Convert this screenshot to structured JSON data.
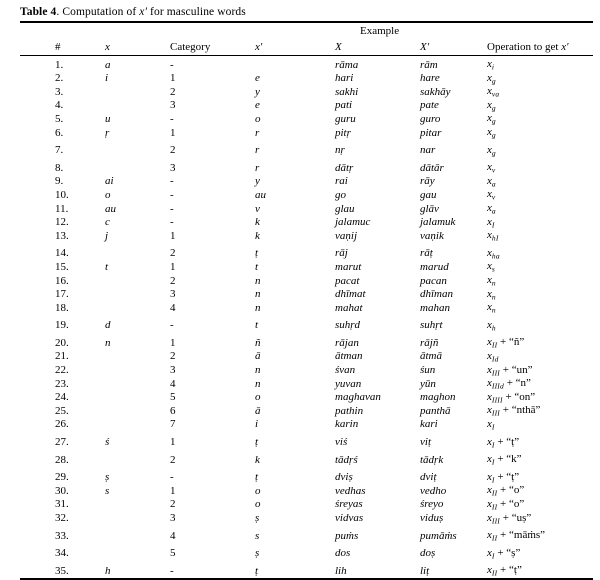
{
  "title": {
    "bold": "Table 4",
    "rest": ". Computation of ",
    "var": "x′",
    "rest2": " for masculine words"
  },
  "header": {
    "example": "Example",
    "columns": [
      "#",
      "x",
      "Category",
      "x′",
      "X",
      "X′"
    ],
    "op_pre": "Operation to get ",
    "op_var": "x′"
  },
  "op_base": "x",
  "rows": [
    {
      "n": "1.",
      "x": "a",
      "cat": "-",
      "xp": "",
      "X": "rāma",
      "Xp": "rām",
      "op": {
        "sub": "i",
        "suffix": ""
      },
      "tall": false
    },
    {
      "n": "2.",
      "x": "i",
      "cat": "1",
      "xp": "e",
      "X": "hari",
      "Xp": "hare",
      "op": {
        "sub": "g",
        "suffix": ""
      },
      "tall": false
    },
    {
      "n": "3.",
      "x": "",
      "cat": "2",
      "xp": "y",
      "X": "sakhi",
      "Xp": "sakhāy",
      "op": {
        "sub": "va",
        "suffix": ""
      },
      "tall": false
    },
    {
      "n": "4.",
      "x": "",
      "cat": "3",
      "xp": "e",
      "X": "pati",
      "Xp": "pate",
      "op": {
        "sub": "g",
        "suffix": ""
      },
      "tall": false
    },
    {
      "n": "5.",
      "x": "u",
      "cat": "-",
      "xp": "o",
      "X": "guru",
      "Xp": "guro",
      "op": {
        "sub": "g",
        "suffix": ""
      },
      "tall": false
    },
    {
      "n": "6.",
      "x": "ṛ",
      "cat": "1",
      "xp": "r",
      "X": "pitṛ",
      "Xp": "pitar",
      "op": {
        "sub": "g",
        "suffix": ""
      },
      "tall": false
    },
    {
      "n": "7.",
      "x": "",
      "cat": "2",
      "xp": "r",
      "X": "nṛ",
      "Xp": "nar",
      "op": {
        "sub": "g",
        "suffix": ""
      },
      "tall": true
    },
    {
      "n": "8.",
      "x": "",
      "cat": "3",
      "xp": "r",
      "X": "dātṛ",
      "Xp": "dātār",
      "op": {
        "sub": "v",
        "suffix": ""
      },
      "tall": true
    },
    {
      "n": "9.",
      "x": "ai",
      "cat": "-",
      "xp": "y",
      "X": "rai",
      "Xp": "rāy",
      "op": {
        "sub": "a",
        "suffix": ""
      },
      "tall": false
    },
    {
      "n": "10.",
      "x": "o",
      "cat": "-",
      "xp": "au",
      "X": "go",
      "Xp": "gau",
      "op": {
        "sub": "v",
        "suffix": ""
      },
      "tall": false
    },
    {
      "n": "11.",
      "x": "au",
      "cat": "-",
      "xp": "v",
      "X": "glau",
      "Xp": "glāv",
      "op": {
        "sub": "a",
        "suffix": ""
      },
      "tall": false
    },
    {
      "n": "12.",
      "x": "c",
      "cat": "-",
      "xp": "k",
      "X": "jalamuc",
      "Xp": "jalamuk",
      "op": {
        "sub": "I",
        "suffix": ""
      },
      "tall": false
    },
    {
      "n": "13.",
      "x": "j",
      "cat": "1",
      "xp": "k",
      "X": "vaṇij",
      "Xp": "vaṇik",
      "op": {
        "sub": "hI",
        "suffix": ""
      },
      "tall": false
    },
    {
      "n": "14.",
      "x": "",
      "cat": "2",
      "xp": "ṭ",
      "X": "rāj",
      "Xp": "rāṭ",
      "op": {
        "sub": "ha",
        "suffix": ""
      },
      "tall": true
    },
    {
      "n": "15.",
      "x": "t",
      "cat": "1",
      "xp": "t",
      "X": "marut",
      "Xp": "marud",
      "op": {
        "sub": "s",
        "suffix": ""
      },
      "tall": false
    },
    {
      "n": "16.",
      "x": "",
      "cat": "2",
      "xp": "n",
      "X": "pacat",
      "Xp": "pacan",
      "op": {
        "sub": "n",
        "suffix": ""
      },
      "tall": false
    },
    {
      "n": "17.",
      "x": "",
      "cat": "3",
      "xp": "n",
      "X": "dhīmat",
      "Xp": "dhīman",
      "op": {
        "sub": "n",
        "suffix": ""
      },
      "tall": false
    },
    {
      "n": "18.",
      "x": "",
      "cat": "4",
      "xp": "n",
      "X": "mahat",
      "Xp": "mahan",
      "op": {
        "sub": "n",
        "suffix": ""
      },
      "tall": false
    },
    {
      "n": "19.",
      "x": "d",
      "cat": "-",
      "xp": "t",
      "X": "suhṛd",
      "Xp": "suhṛt",
      "op": {
        "sub": "h",
        "suffix": ""
      },
      "tall": true
    },
    {
      "n": "20.",
      "x": "n",
      "cat": "1",
      "xp": "ñ",
      "X": "rājan",
      "Xp": "rājñ",
      "op": {
        "sub": "II",
        "suffix": " + “ñ”"
      },
      "tall": true
    },
    {
      "n": "21.",
      "x": "",
      "cat": "2",
      "xp": "ā",
      "X": "ātman",
      "Xp": "ātmā",
      "op": {
        "sub": "Id",
        "suffix": ""
      },
      "tall": false
    },
    {
      "n": "22.",
      "x": "",
      "cat": "3",
      "xp": "n",
      "X": "śvan",
      "Xp": "śun",
      "op": {
        "sub": "III",
        "suffix": " + “un”"
      },
      "tall": false
    },
    {
      "n": "23.",
      "x": "",
      "cat": "4",
      "xp": "n",
      "X": "yuvan",
      "Xp": "yūn",
      "op": {
        "sub": "IIId",
        "suffix": " + “n”"
      },
      "tall": false
    },
    {
      "n": "24.",
      "x": "",
      "cat": "5",
      "xp": "o",
      "X": "maghavan",
      "Xp": "maghon",
      "op": {
        "sub": "IIII",
        "suffix": " + “on”"
      },
      "tall": false
    },
    {
      "n": "25.",
      "x": "",
      "cat": "6",
      "xp": "ā",
      "X": "pathin",
      "Xp": "panthā",
      "op": {
        "sub": "III",
        "suffix": " + “nthā”"
      },
      "tall": false
    },
    {
      "n": "26.",
      "x": "",
      "cat": "7",
      "xp": "i",
      "X": "karin",
      "Xp": "kari",
      "op": {
        "sub": "I",
        "suffix": ""
      },
      "tall": false
    },
    {
      "n": "27.",
      "x": "ś",
      "cat": "1",
      "xp": "ṭ",
      "X": "viś",
      "Xp": "viṭ",
      "op": {
        "sub": "I",
        "suffix": " + “ṭ”"
      },
      "tall": true
    },
    {
      "n": "28.",
      "x": "",
      "cat": "2",
      "xp": "k",
      "X": "tādṛś",
      "Xp": "tādṛk",
      "op": {
        "sub": "I",
        "suffix": " + “k”"
      },
      "tall": true
    },
    {
      "n": "29.",
      "x": "ṣ",
      "cat": "-",
      "xp": "ṭ",
      "X": "dviṣ",
      "Xp": "dviṭ",
      "op": {
        "sub": "I",
        "suffix": " + “ṭ”"
      },
      "tall": true
    },
    {
      "n": "30.",
      "x": "s",
      "cat": "1",
      "xp": "o",
      "X": "vedhas",
      "Xp": "vedho",
      "op": {
        "sub": "II",
        "suffix": " + “o”"
      },
      "tall": false
    },
    {
      "n": "31.",
      "x": "",
      "cat": "2",
      "xp": "o",
      "X": "śreyas",
      "Xp": "śreyo",
      "op": {
        "sub": "II",
        "suffix": " + “o”"
      },
      "tall": false
    },
    {
      "n": "32.",
      "x": "",
      "cat": "3",
      "xp": "ṣ",
      "X": "vidvas",
      "Xp": "viduṣ",
      "op": {
        "sub": "III",
        "suffix": " + “uṣ”"
      },
      "tall": false
    },
    {
      "n": "33.",
      "x": "",
      "cat": "4",
      "xp": "s",
      "X": "puṁs",
      "Xp": "pumāṁs",
      "op": {
        "sub": "II",
        "suffix": " + “māṁs”"
      },
      "tall": true
    },
    {
      "n": "34.",
      "x": "",
      "cat": "5",
      "xp": "ṣ",
      "X": "dos",
      "Xp": "doṣ",
      "op": {
        "sub": "I",
        "suffix": " + “ṣ”"
      },
      "tall": true
    },
    {
      "n": "35.",
      "x": "h",
      "cat": "-",
      "xp": "ṭ",
      "X": "lih",
      "Xp": "liṭ",
      "op": {
        "sub": "II",
        "suffix": " + “ṭ”"
      },
      "tall": true
    }
  ]
}
